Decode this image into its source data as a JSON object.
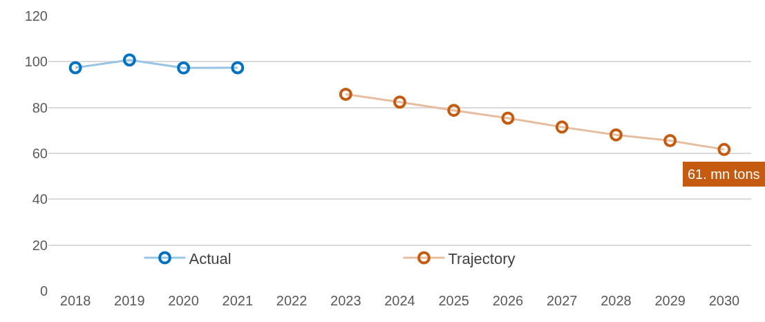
{
  "chart_data": {
    "type": "line",
    "categories": [
      "2018",
      "2019",
      "2020",
      "2021",
      "2022",
      "2023",
      "2024",
      "2025",
      "2026",
      "2027",
      "2028",
      "2029",
      "2030"
    ],
    "series": [
      {
        "name": "Actual",
        "color": "#0070c0",
        "values": [
          97.4,
          100.8,
          97.3,
          97.4,
          null,
          null,
          null,
          null,
          null,
          null,
          null,
          null,
          null
        ]
      },
      {
        "name": "Trajectory",
        "color": "#c55a11",
        "values": [
          null,
          null,
          null,
          null,
          null,
          85.8,
          82.4,
          78.8,
          75.4,
          71.5,
          68.1,
          65.6,
          61.7
        ]
      }
    ],
    "ylim": [
      0,
      120
    ],
    "yticks": [
      0,
      20,
      40,
      60,
      80,
      100,
      120
    ],
    "grid": "y",
    "legend": "bottom",
    "marker": "circle",
    "line_style": "solid",
    "annotations": [
      {
        "text": "61. mn tons",
        "x": "2030",
        "y": 61.7
      }
    ]
  }
}
